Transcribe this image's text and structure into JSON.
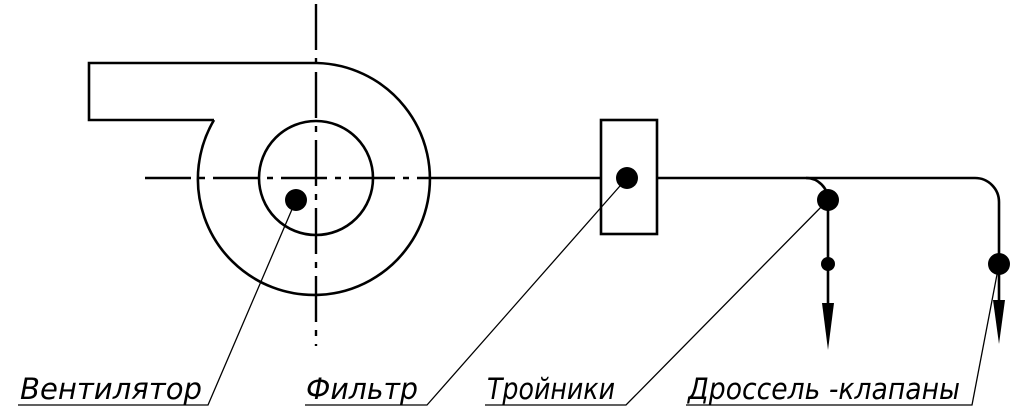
{
  "labels": {
    "fan": "Вентилятор",
    "filter": "Фильтр",
    "tees": "Тройники",
    "dampers": "Дроссель -клапаны"
  },
  "colors": {
    "stroke": "#000000",
    "background": "#ffffff"
  }
}
